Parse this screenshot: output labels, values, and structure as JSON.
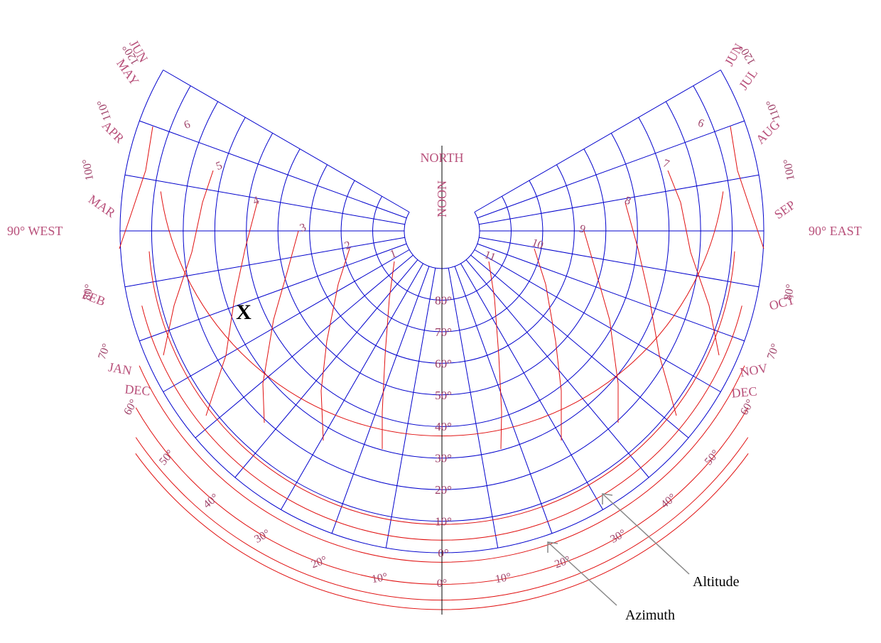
{
  "diagram": {
    "north_label": "NORTH",
    "noon_label": "NOON",
    "west_label": "90° WEST",
    "east_label": "90° EAST",
    "marker_label": "X",
    "annotations": {
      "altitude": "Altitude",
      "azimuth": "Azimuth"
    },
    "colors": {
      "grid": "#0000cc",
      "sun_path": "#e01010",
      "label": "#b8507a",
      "arrow": "#888888"
    },
    "altitude_labels": [
      "0°",
      "10°",
      "20°",
      "30°",
      "40°",
      "50°",
      "60°",
      "70°",
      "80°"
    ],
    "azimuth_labels_left": [
      "0°",
      "10°",
      "20°",
      "30°",
      "40°",
      "50°",
      "60°",
      "70°",
      "80°",
      "100°",
      "110°",
      "120°"
    ],
    "azimuth_labels_right": [
      "10°",
      "20°",
      "30°",
      "40°",
      "50°",
      "60°",
      "70°",
      "80°",
      "100°",
      "110°",
      "120°"
    ],
    "month_labels_left": [
      "JUN",
      "MAY",
      "APR",
      "MAR",
      "FEB",
      "JAN",
      "DEC"
    ],
    "month_labels_right": [
      "JUN",
      "JUL",
      "AUG",
      "SEP",
      "OCT",
      "NOV",
      "DEC"
    ],
    "hour_labels_am": [
      "6",
      "5",
      "4",
      "3",
      "2",
      "1"
    ],
    "hour_labels_pm": [
      "11",
      "10",
      "9",
      "8",
      "7",
      "6"
    ]
  }
}
